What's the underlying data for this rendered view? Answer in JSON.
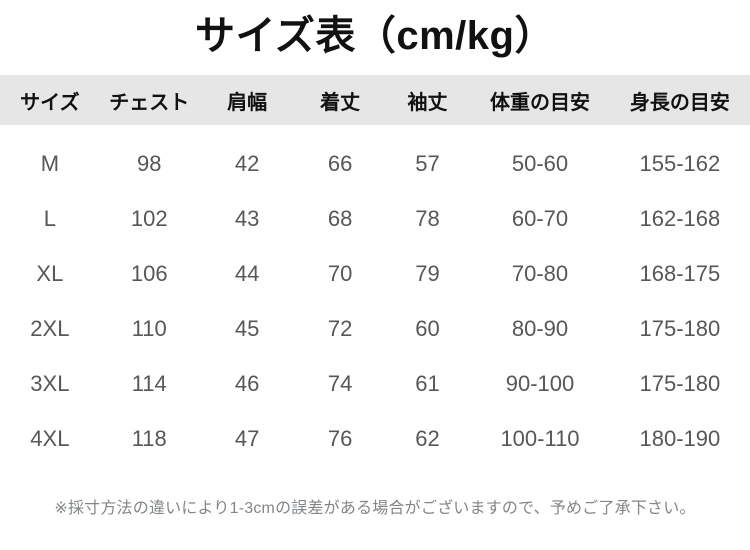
{
  "title": "サイズ表（cm/kg）",
  "chart_data": {
    "type": "table",
    "title": "サイズ表（cm/kg）",
    "units": "cm/kg",
    "columns": [
      "サイズ",
      "チェスト",
      "肩幅",
      "着丈",
      "袖丈",
      "体重の目安",
      "身長の目安"
    ],
    "rows": [
      [
        "M",
        98,
        42,
        66,
        57,
        "50-60",
        "155-162"
      ],
      [
        "L",
        102,
        43,
        68,
        78,
        "60-70",
        "162-168"
      ],
      [
        "XL",
        106,
        44,
        70,
        79,
        "70-80",
        "168-175"
      ],
      [
        "2XL",
        110,
        45,
        72,
        60,
        "80-90",
        "175-180"
      ],
      [
        "3XL",
        114,
        46,
        74,
        61,
        "90-100",
        "175-180"
      ],
      [
        "4XL",
        118,
        47,
        76,
        62,
        "100-110",
        "180-190"
      ]
    ]
  },
  "note": "※採寸方法の違いにより1-3cmの誤差がある場合がございますので、予めご了承下さい。",
  "colors": {
    "background": "#ffffff",
    "header_bg": "#e6e6e6",
    "header_text": "#111111",
    "title_text": "#111111",
    "data_text": "#555759",
    "note_text": "#828688"
  }
}
